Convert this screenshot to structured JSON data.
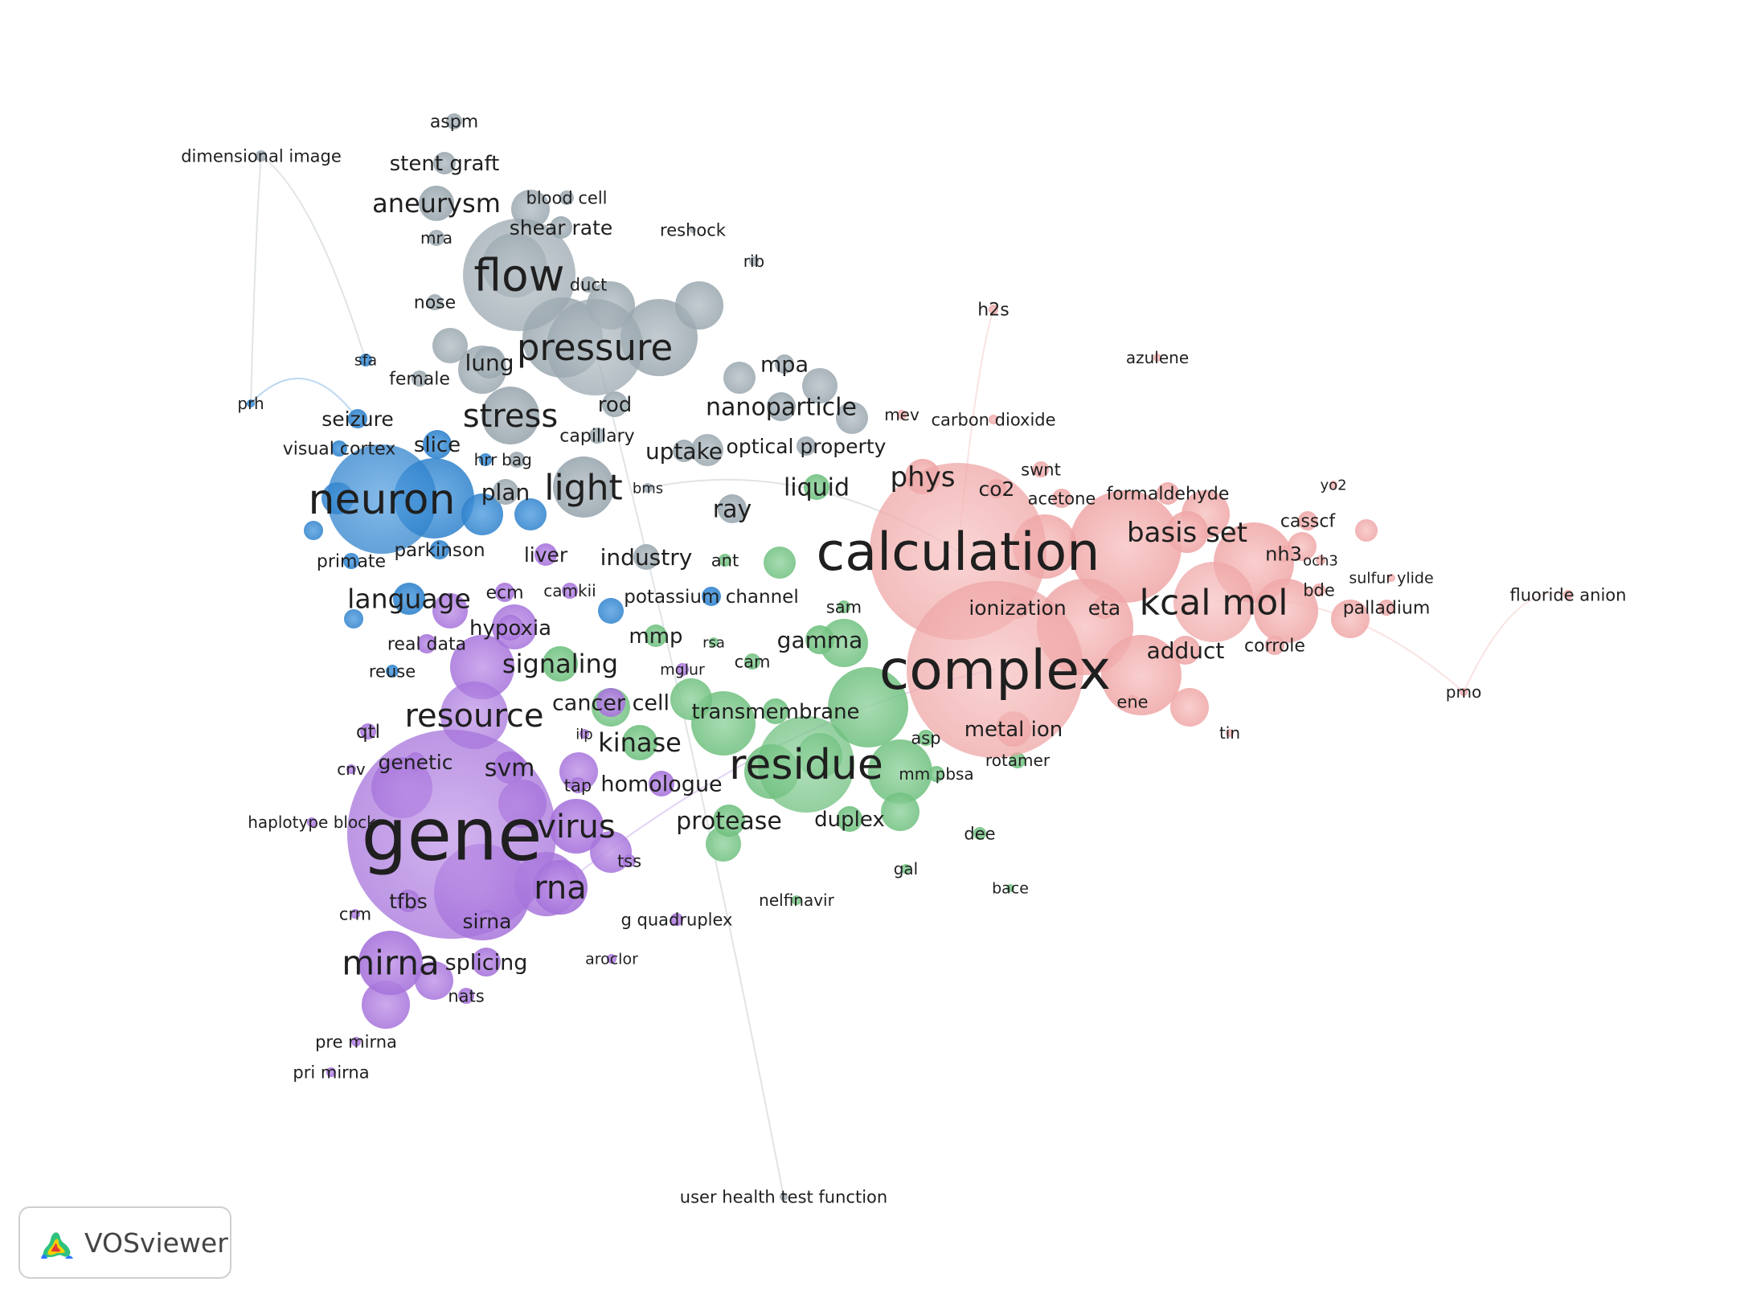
{
  "colors": {
    "cluster_gray": "#a5b1b8",
    "cluster_blue": "#3d8fd6",
    "cluster_purple": "#b07ee0",
    "cluster_green": "#7fc98d",
    "cluster_pink": "#f2b0b0",
    "text": "#1f1f1f"
  },
  "logo": {
    "text": "VOSviewer",
    "icon": "vosviewer-logo-icon"
  },
  "terms": [
    {
      "label": "aspm",
      "cluster": "gray"
    },
    {
      "label": "dimensional image",
      "cluster": "gray"
    },
    {
      "label": "stent graft",
      "cluster": "gray"
    },
    {
      "label": "blood cell",
      "cluster": "gray"
    },
    {
      "label": "aneurysm",
      "cluster": "gray"
    },
    {
      "label": "shear rate",
      "cluster": "gray"
    },
    {
      "label": "reshock",
      "cluster": "gray"
    },
    {
      "label": "mra",
      "cluster": "gray"
    },
    {
      "label": "flow",
      "cluster": "gray"
    },
    {
      "label": "duct",
      "cluster": "gray"
    },
    {
      "label": "rib",
      "cluster": "gray"
    },
    {
      "label": "nose",
      "cluster": "gray"
    },
    {
      "label": "pressure",
      "cluster": "gray"
    },
    {
      "label": "lung",
      "cluster": "gray"
    },
    {
      "label": "mpa",
      "cluster": "gray"
    },
    {
      "label": "sfa",
      "cluster": "blue"
    },
    {
      "label": "female",
      "cluster": "gray"
    },
    {
      "label": "rod",
      "cluster": "gray"
    },
    {
      "label": "nanoparticle",
      "cluster": "gray"
    },
    {
      "label": "prh",
      "cluster": "blue"
    },
    {
      "label": "stress",
      "cluster": "gray"
    },
    {
      "label": "seizure",
      "cluster": "blue"
    },
    {
      "label": "capillary",
      "cluster": "gray"
    },
    {
      "label": "slice",
      "cluster": "blue"
    },
    {
      "label": "visual cortex",
      "cluster": "blue"
    },
    {
      "label": "uptake",
      "cluster": "gray"
    },
    {
      "label": "optical property",
      "cluster": "gray"
    },
    {
      "label": "hrr",
      "cluster": "blue"
    },
    {
      "label": "bag",
      "cluster": "gray"
    },
    {
      "label": "light",
      "cluster": "gray"
    },
    {
      "label": "plan",
      "cluster": "gray"
    },
    {
      "label": "bms",
      "cluster": "gray"
    },
    {
      "label": "neuron",
      "cluster": "blue"
    },
    {
      "label": "ray",
      "cluster": "gray"
    },
    {
      "label": "liquid",
      "cluster": "green"
    },
    {
      "label": "parkinson",
      "cluster": "blue"
    },
    {
      "label": "primate",
      "cluster": "blue"
    },
    {
      "label": "liver",
      "cluster": "purple"
    },
    {
      "label": "industry",
      "cluster": "gray"
    },
    {
      "label": "ant",
      "cluster": "green"
    },
    {
      "label": "language",
      "cluster": "blue"
    },
    {
      "label": "ecm",
      "cluster": "purple"
    },
    {
      "label": "camkii",
      "cluster": "purple"
    },
    {
      "label": "potassium channel",
      "cluster": "blue"
    },
    {
      "label": "hypoxia",
      "cluster": "purple"
    },
    {
      "label": "real data",
      "cluster": "purple"
    },
    {
      "label": "mmp",
      "cluster": "green"
    },
    {
      "label": "rsa",
      "cluster": "green"
    },
    {
      "label": "sam",
      "cluster": "green"
    },
    {
      "label": "gamma",
      "cluster": "green"
    },
    {
      "label": "reuse",
      "cluster": "blue"
    },
    {
      "label": "signaling",
      "cluster": "green"
    },
    {
      "label": "cam",
      "cluster": "green"
    },
    {
      "label": "mglur",
      "cluster": "purple"
    },
    {
      "label": "resource",
      "cluster": "purple"
    },
    {
      "label": "cancer cell",
      "cluster": "purple"
    },
    {
      "label": "transmembrane",
      "cluster": "green"
    },
    {
      "label": "qtl",
      "cluster": "purple"
    },
    {
      "label": "ilp",
      "cluster": "purple"
    },
    {
      "label": "kinase",
      "cluster": "green"
    },
    {
      "label": "genetic",
      "cluster": "purple"
    },
    {
      "label": "cnv",
      "cluster": "purple"
    },
    {
      "label": "svm",
      "cluster": "purple"
    },
    {
      "label": "tap",
      "cluster": "purple"
    },
    {
      "label": "homologue",
      "cluster": "purple"
    },
    {
      "label": "residue",
      "cluster": "green"
    },
    {
      "label": "asp",
      "cluster": "green"
    },
    {
      "label": "metal ion",
      "cluster": "pink"
    },
    {
      "label": "mm pbsa",
      "cluster": "green"
    },
    {
      "label": "rotamer",
      "cluster": "green"
    },
    {
      "label": "haplotype block",
      "cluster": "purple"
    },
    {
      "label": "gene",
      "cluster": "purple"
    },
    {
      "label": "virus",
      "cluster": "purple"
    },
    {
      "label": "protease",
      "cluster": "green"
    },
    {
      "label": "duplex",
      "cluster": "green"
    },
    {
      "label": "dee",
      "cluster": "green"
    },
    {
      "label": "tss",
      "cluster": "purple"
    },
    {
      "label": "rna",
      "cluster": "purple"
    },
    {
      "label": "gal",
      "cluster": "green"
    },
    {
      "label": "bace",
      "cluster": "green"
    },
    {
      "label": "nelfinavir",
      "cluster": "green"
    },
    {
      "label": "tfbs",
      "cluster": "purple"
    },
    {
      "label": "crm",
      "cluster": "purple"
    },
    {
      "label": "sirna",
      "cluster": "purple"
    },
    {
      "label": "g quadruplex",
      "cluster": "purple"
    },
    {
      "label": "mirna",
      "cluster": "purple"
    },
    {
      "label": "splicing",
      "cluster": "purple"
    },
    {
      "label": "aroclor",
      "cluster": "purple"
    },
    {
      "label": "nats",
      "cluster": "purple"
    },
    {
      "label": "pre mirna",
      "cluster": "purple"
    },
    {
      "label": "pri mirna",
      "cluster": "purple"
    },
    {
      "label": "h2s",
      "cluster": "pink"
    },
    {
      "label": "azulene",
      "cluster": "pink"
    },
    {
      "label": "mev",
      "cluster": "pink"
    },
    {
      "label": "carbon dioxide",
      "cluster": "pink"
    },
    {
      "label": "phys",
      "cluster": "pink"
    },
    {
      "label": "swnt",
      "cluster": "pink"
    },
    {
      "label": "co2",
      "cluster": "pink"
    },
    {
      "label": "acetone",
      "cluster": "pink"
    },
    {
      "label": "formaldehyde",
      "cluster": "pink"
    },
    {
      "label": "yo2",
      "cluster": "pink"
    },
    {
      "label": "calculation",
      "cluster": "pink"
    },
    {
      "label": "basis set",
      "cluster": "pink"
    },
    {
      "label": "casscf",
      "cluster": "pink"
    },
    {
      "label": "nh3",
      "cluster": "pink"
    },
    {
      "label": "och3",
      "cluster": "pink"
    },
    {
      "label": "sulfur ylide",
      "cluster": "pink"
    },
    {
      "label": "fluoride anion",
      "cluster": "pink"
    },
    {
      "label": "bde",
      "cluster": "pink"
    },
    {
      "label": "ionization",
      "cluster": "pink"
    },
    {
      "label": "eta",
      "cluster": "pink"
    },
    {
      "label": "kcal mol",
      "cluster": "pink"
    },
    {
      "label": "palladium",
      "cluster": "pink"
    },
    {
      "label": "complex",
      "cluster": "pink"
    },
    {
      "label": "adduct",
      "cluster": "pink"
    },
    {
      "label": "corrole",
      "cluster": "pink"
    },
    {
      "label": "ene",
      "cluster": "pink"
    },
    {
      "label": "pmo",
      "cluster": "pink"
    },
    {
      "label": "tin",
      "cluster": "pink"
    },
    {
      "label": "user health test function",
      "cluster": "gray"
    }
  ]
}
